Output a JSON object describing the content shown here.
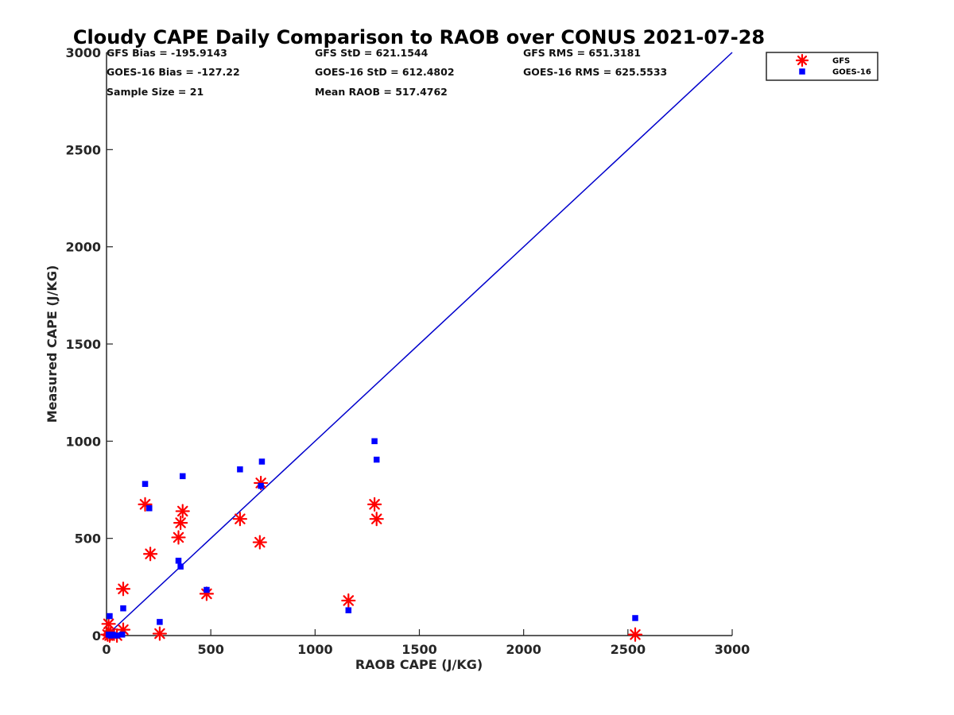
{
  "chart_data": {
    "type": "scatter",
    "title": "Cloudy CAPE Daily Comparison to RAOB over CONUS 2021-07-28",
    "xlabel": "RAOB CAPE (J/KG)",
    "ylabel": "Measured CAPE (J/KG)",
    "xlim": [
      0,
      3000
    ],
    "ylim": [
      0,
      3000
    ],
    "xticks": [
      "0",
      "500",
      "1000",
      "1500",
      "2000",
      "2500",
      "3000"
    ],
    "yticks": [
      "0",
      "500",
      "1000",
      "1500",
      "2000",
      "2500",
      "3000"
    ],
    "grid": false,
    "legend_position": "top-right",
    "stats": [
      "GFS Bias = -195.9143",
      "GFS StD = 621.1544",
      "GFS RMS = 651.3181",
      "GOES-16 Bias = -127.22",
      "GOES-16 StD = 612.4802",
      "GOES-16 RMS = 625.5533",
      "Sample Size = 21",
      "Mean RAOB = 517.4762"
    ],
    "reference_line": {
      "x": [
        0,
        3000
      ],
      "y": [
        0,
        3000
      ],
      "color": "#0000cc"
    },
    "series": [
      {
        "name": "GFS",
        "marker": "asterisk",
        "color": "#ff0000",
        "points": [
          [
            5,
            5
          ],
          [
            10,
            60
          ],
          [
            20,
            10
          ],
          [
            50,
            0
          ],
          [
            80,
            240
          ],
          [
            80,
            30
          ],
          [
            185,
            675
          ],
          [
            210,
            420
          ],
          [
            255,
            10
          ],
          [
            345,
            505
          ],
          [
            355,
            580
          ],
          [
            365,
            640
          ],
          [
            480,
            215
          ],
          [
            640,
            600
          ],
          [
            735,
            480
          ],
          [
            740,
            785
          ],
          [
            1160,
            180
          ],
          [
            1285,
            675
          ],
          [
            1295,
            600
          ],
          [
            2535,
            5
          ],
          [
            15,
            0
          ]
        ]
      },
      {
        "name": "GOES-16",
        "marker": "square",
        "color": "#0000ff",
        "points": [
          [
            10,
            5
          ],
          [
            15,
            100
          ],
          [
            50,
            0
          ],
          [
            75,
            5
          ],
          [
            80,
            140
          ],
          [
            185,
            780
          ],
          [
            205,
            655
          ],
          [
            255,
            70
          ],
          [
            345,
            385
          ],
          [
            355,
            355
          ],
          [
            365,
            820
          ],
          [
            480,
            235
          ],
          [
            640,
            855
          ],
          [
            740,
            770
          ],
          [
            745,
            895
          ],
          [
            1160,
            130
          ],
          [
            1285,
            1000
          ],
          [
            1295,
            905
          ],
          [
            2535,
            90
          ],
          [
            20,
            0
          ],
          [
            30,
            5
          ]
        ]
      }
    ]
  }
}
